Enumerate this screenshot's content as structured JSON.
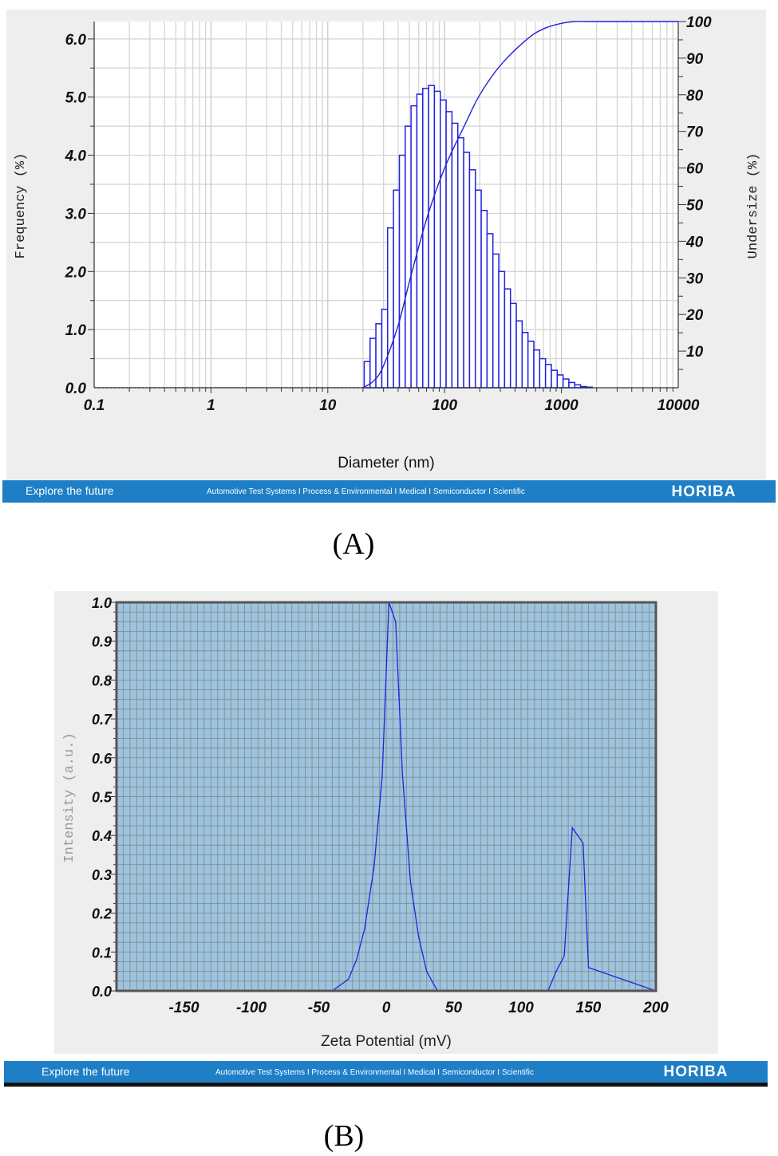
{
  "panel_a": {
    "label": "(A)",
    "banner": {
      "tagline": "Explore the future",
      "links": "Automotive Test Systems  I  Process & Environmental  I  Medical  I  Semiconductor  I  Scientific",
      "brand": "HORIBA"
    }
  },
  "panel_b": {
    "label": "(B)",
    "banner": {
      "tagline": "Explore the future",
      "links": "Automotive Test Systems  I  Process & Environmental  I  Medical  I  Semiconductor  I  Scientific",
      "brand": "HORIBA"
    }
  },
  "colors": {
    "series": "#2222dd",
    "banner": "#1e7fc6",
    "plot_b_bg": "#9ec3dc",
    "panel_bg": "#eeeeee"
  },
  "chart_data": [
    {
      "type": "bar",
      "xlabel": "Diameter (nm)",
      "ylabel": "Frequency (%)",
      "y2label": "Undersize (%)",
      "xscale": "log",
      "xlim": [
        0.1,
        10000
      ],
      "ylim": [
        0,
        6.3
      ],
      "y2lim": [
        0,
        100
      ],
      "xticks": [
        "0.1",
        "1",
        "10",
        "100",
        "1000",
        "10000"
      ],
      "yticks": [
        "0.0",
        "1.0",
        "2.0",
        "3.0",
        "4.0",
        "5.0",
        "6.0"
      ],
      "y2ticks": [
        "10",
        "20",
        "30",
        "40",
        "50",
        "60",
        "70",
        "80",
        "90",
        "100"
      ],
      "grid": true,
      "bin_edges": [
        20.5,
        23.0,
        25.8,
        29.0,
        32.5,
        36.5,
        41.0,
        46.0,
        51.6,
        57.9,
        65.0,
        72.9,
        81.8,
        91.8,
        103.0,
        115.6,
        129.7,
        145.6,
        163.4,
        183.3,
        205.7,
        230.8,
        259.0,
        290.7,
        326.2,
        366.1,
        410.8,
        461.0,
        517.3,
        580.4,
        651.3,
        730.8,
        820.0,
        920.1,
        1032.5,
        1158.5,
        1300.0,
        1458.7,
        1636.8,
        1836.6
      ],
      "series": [
        {
          "name": "Frequency",
          "values": [
            0.45,
            0.85,
            1.1,
            1.35,
            2.75,
            3.4,
            4.0,
            4.5,
            4.85,
            5.05,
            5.15,
            5.2,
            5.1,
            4.95,
            4.75,
            4.55,
            4.3,
            4.05,
            3.75,
            3.4,
            3.05,
            2.65,
            2.3,
            2.0,
            1.7,
            1.45,
            1.15,
            0.95,
            0.8,
            0.65,
            0.5,
            0.4,
            0.3,
            0.22,
            0.15,
            0.09,
            0.05,
            0.02,
            0.01
          ]
        },
        {
          "name": "Undersize",
          "x": [
            20,
            25,
            30,
            40,
            50,
            70,
            100,
            150,
            200,
            300,
            500,
            700,
            1000,
            1300,
            1800,
            10000
          ],
          "values": [
            0,
            2,
            6,
            17,
            29,
            46,
            60,
            72,
            80,
            88,
            95,
            98,
            99.5,
            100,
            100,
            100
          ]
        }
      ]
    },
    {
      "type": "line",
      "xlabel": "Zeta Potential (mV)",
      "ylabel": "Intensity (a.u.)",
      "xlim": [
        -200,
        200
      ],
      "ylim": [
        0,
        1.0
      ],
      "xticks": [
        "-150",
        "-100",
        "-50",
        "0",
        "50",
        "100",
        "150",
        "200"
      ],
      "yticks": [
        "0.0",
        "0.1",
        "0.2",
        "0.3",
        "0.4",
        "0.5",
        "0.6",
        "0.7",
        "0.8",
        "0.9",
        "1.0"
      ],
      "grid": true,
      "series": [
        {
          "name": "Intensity",
          "x": [
            -200,
            -40,
            -28,
            -22,
            -16,
            -9,
            -3,
            2,
            7,
            12,
            18,
            24,
            30,
            38,
            45,
            120,
            126,
            132,
            138,
            146,
            150,
            200
          ],
          "values": [
            0,
            0,
            0.03,
            0.08,
            0.16,
            0.32,
            0.55,
            1.0,
            0.95,
            0.56,
            0.28,
            0.14,
            0.05,
            0.0,
            0,
            0,
            0.05,
            0.09,
            0.42,
            0.38,
            0.06,
            0
          ]
        }
      ]
    }
  ]
}
